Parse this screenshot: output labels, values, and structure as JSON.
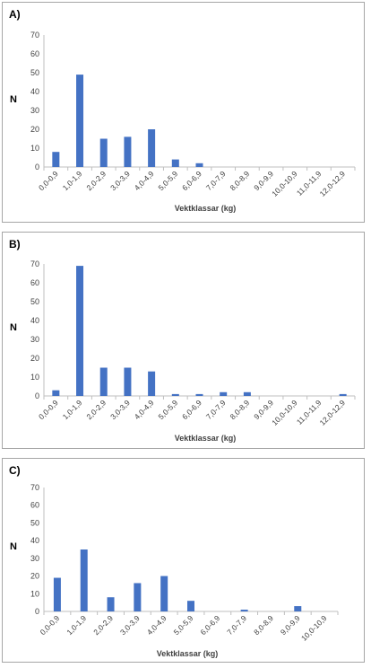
{
  "chart_data": [
    {
      "type": "bar",
      "panel_label": "A)",
      "ylabel": "N",
      "xlabel": "Vektklassar (kg)",
      "ylim": [
        0,
        70
      ],
      "yticks": [
        "0",
        "10",
        "20",
        "30",
        "40",
        "50",
        "60",
        "70"
      ],
      "grid": false,
      "bar_color": "#4472c4",
      "categories": [
        "0,0-0,9",
        "1,0-1,9",
        "2,0-2,9",
        "3,0-3,9",
        "4,0-4,9",
        "5,0-5,9",
        "6,0-6,9",
        "7,0-7,9",
        "8,0-8,9",
        "9,0-9,9",
        "10,0-10,9",
        "11,0-11,9",
        "12,0-12,9"
      ],
      "values": [
        8,
        49,
        15,
        16,
        20,
        4,
        2,
        0,
        0,
        0,
        0,
        0,
        0
      ]
    },
    {
      "type": "bar",
      "panel_label": "B)",
      "ylabel": "N",
      "xlabel": "Vektklassar (kg)",
      "ylim": [
        0,
        70
      ],
      "yticks": [
        "0",
        "10",
        "20",
        "30",
        "40",
        "50",
        "60",
        "70"
      ],
      "grid": false,
      "bar_color": "#4472c4",
      "categories": [
        "0,0-0,9",
        "1,0-1,9",
        "2,0-2,9",
        "3,0-3,9",
        "4,0-4,9",
        "5,0-5,9",
        "6,0-6,9",
        "7,0-7,9",
        "8,0-8,9",
        "9,0-9,9",
        "10,0-10,9",
        "11,0-11,9",
        "12,0-12,9"
      ],
      "values": [
        3,
        69,
        15,
        15,
        13,
        1,
        1,
        2,
        2,
        0,
        0,
        0,
        1
      ]
    },
    {
      "type": "bar",
      "panel_label": "C)",
      "ylabel": "N",
      "xlabel": "Vektklassar (kg)",
      "ylim": [
        0,
        70
      ],
      "yticks": [
        "0",
        "10",
        "20",
        "30",
        "40",
        "50",
        "60",
        "70"
      ],
      "grid": false,
      "bar_color": "#4472c4",
      "categories": [
        "0,0-0,9",
        "1,0-1,9",
        "2,0-2,9",
        "3,0-3,9",
        "4,0-4,9",
        "5,0-5,9",
        "6,0-6,9",
        "7,0-7,9",
        "8,0-8,9",
        "9,0-9,9",
        "10,0-10,9"
      ],
      "values": [
        19,
        35,
        8,
        16,
        20,
        6,
        0,
        1,
        0,
        3,
        0
      ]
    }
  ]
}
